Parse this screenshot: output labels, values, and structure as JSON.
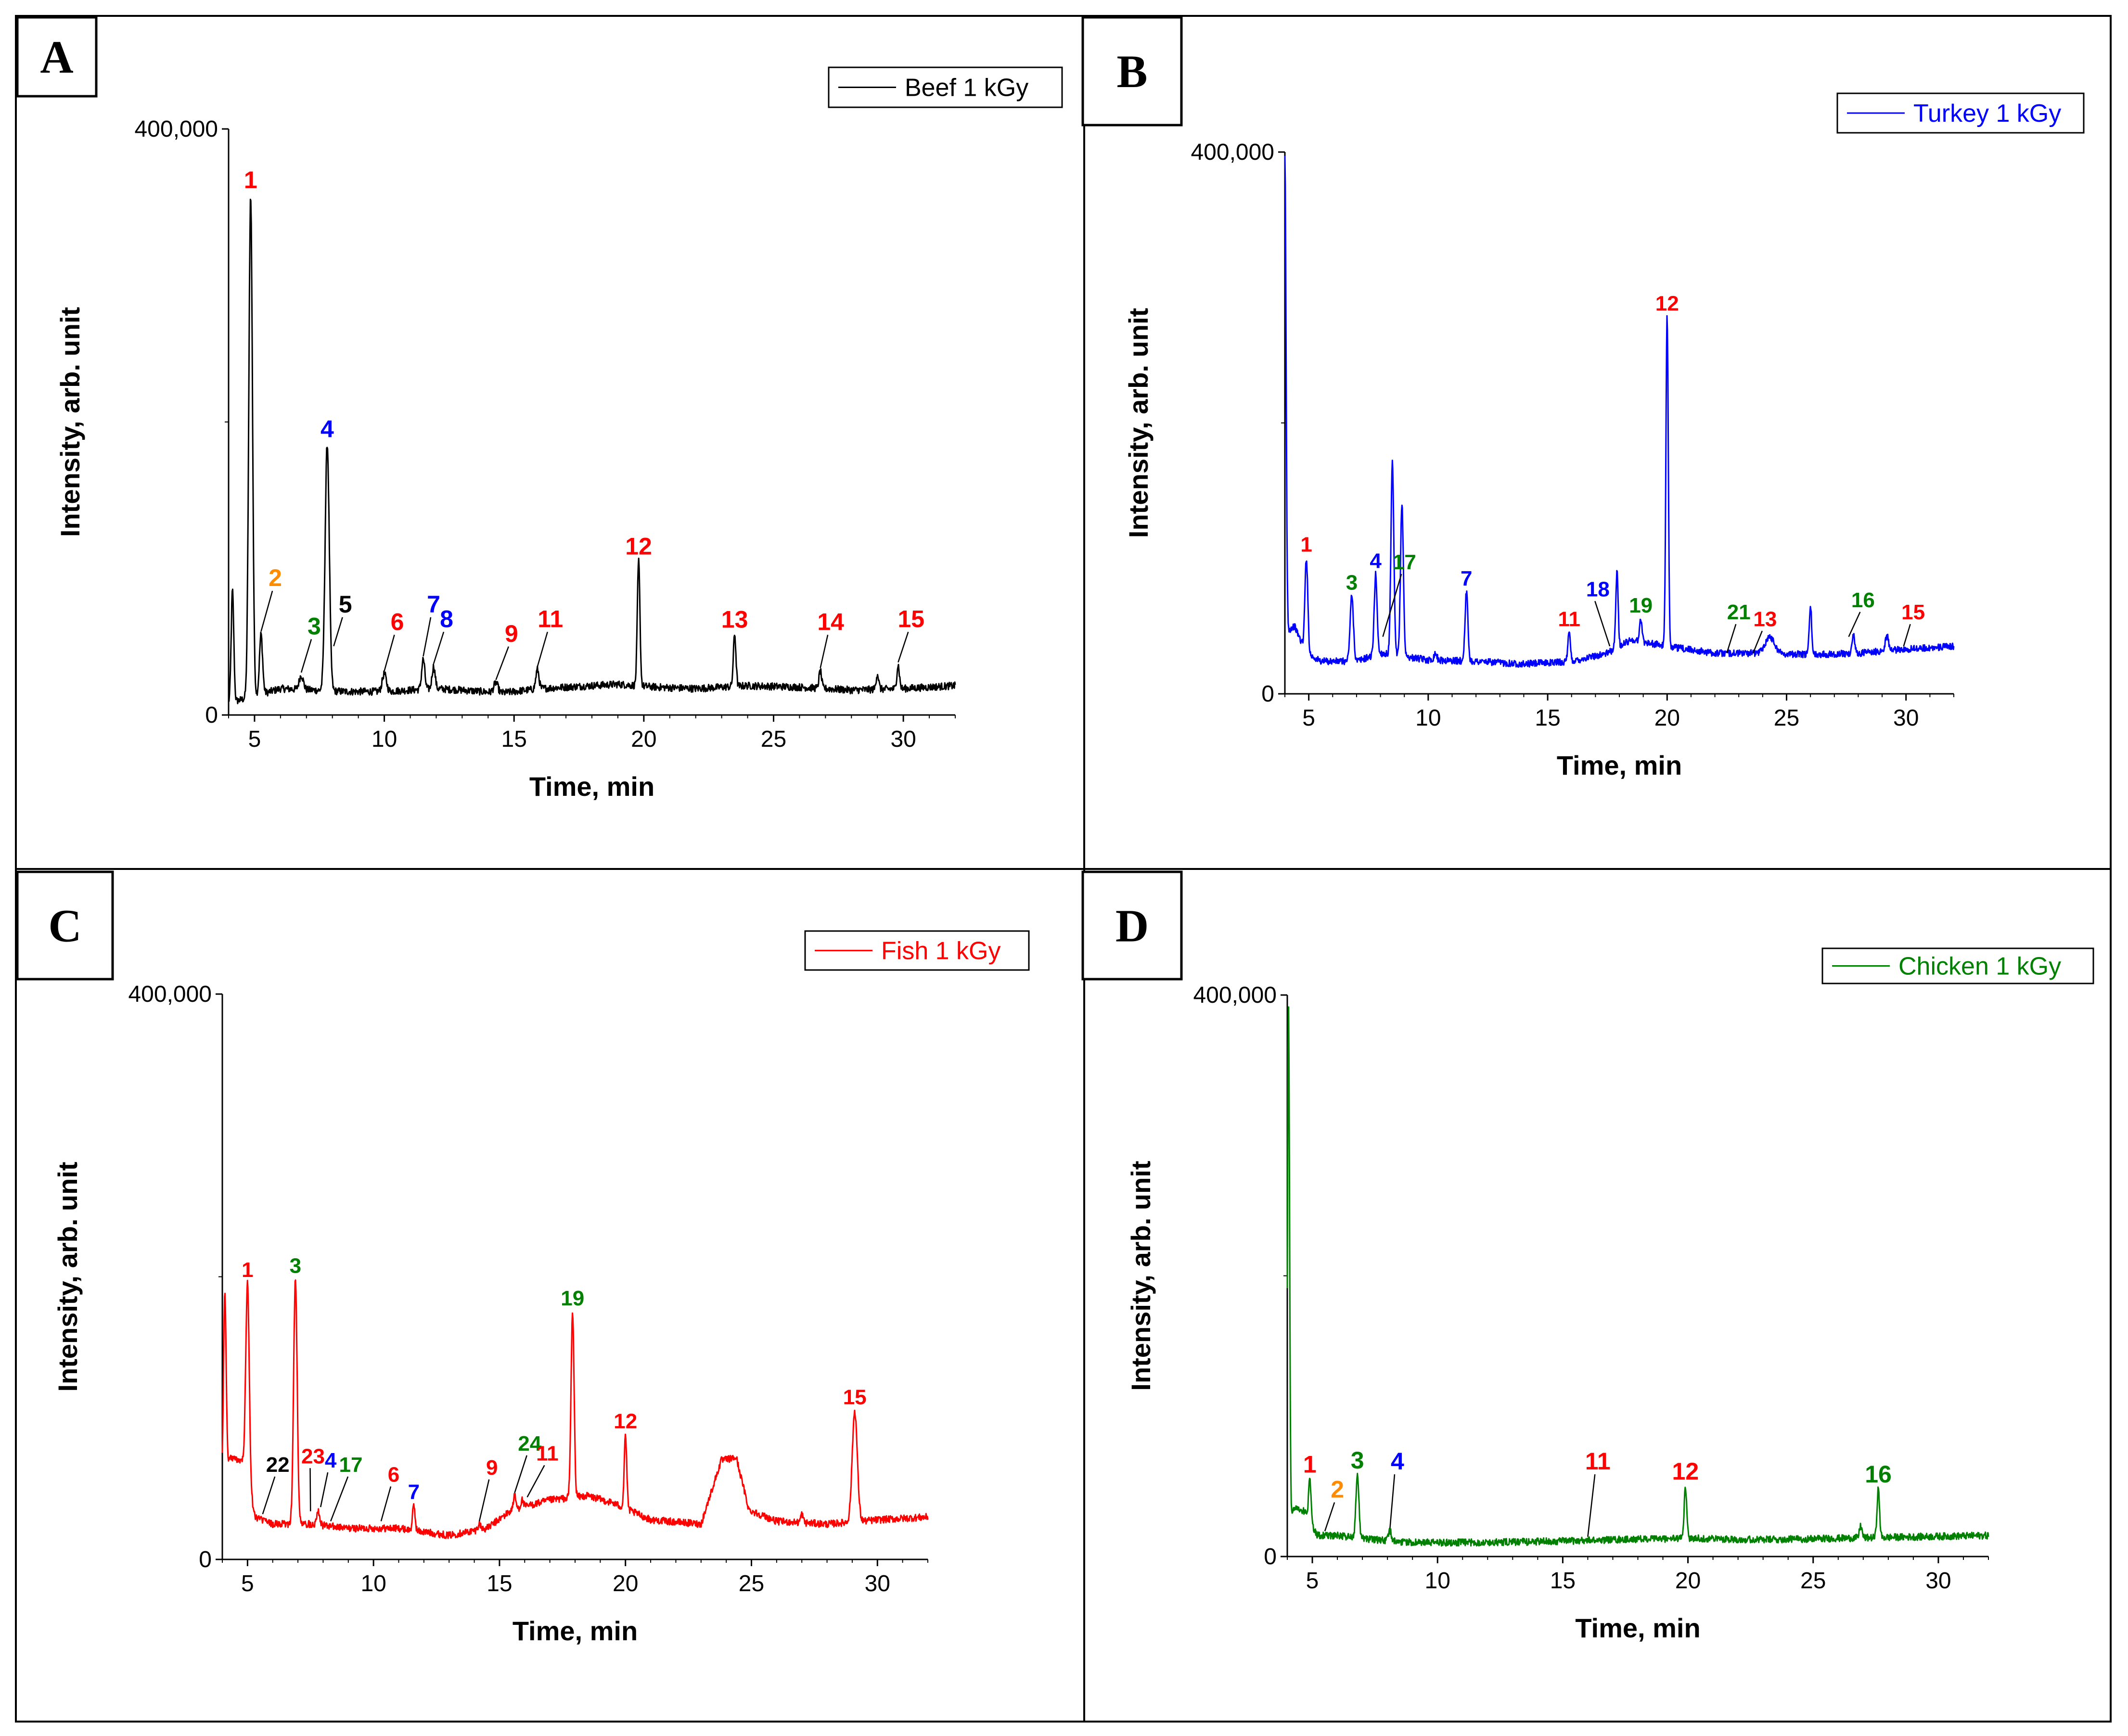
{
  "chart_data": [
    {
      "type": "line",
      "panel": "A",
      "legend": "Beef 1 kGy",
      "color": "#000000",
      "xlabel": "Time, min",
      "ylabel": "Intensity, arb. unit",
      "xlim": [
        4,
        32
      ],
      "ylim": [
        0,
        400000
      ],
      "xticks": [
        5,
        10,
        15,
        20,
        25,
        30
      ],
      "xtick_labels": [
        "5",
        "10",
        "15",
        "20",
        "25",
        "30"
      ],
      "ytick_labels": [
        "0",
        "400,000"
      ],
      "baseline": [
        [
          4.0,
          8000
        ],
        [
          6.0,
          18000
        ],
        [
          8.5,
          16000
        ],
        [
          10.0,
          16000
        ],
        [
          12.0,
          18000
        ],
        [
          13.0,
          17000
        ],
        [
          14.5,
          15000
        ],
        [
          16.0,
          18000
        ],
        [
          18.0,
          20000
        ],
        [
          19.0,
          21000
        ],
        [
          20.5,
          19000
        ],
        [
          22.0,
          18000
        ],
        [
          24.0,
          20000
        ],
        [
          26.0,
          19000
        ],
        [
          28.0,
          17000
        ],
        [
          30.0,
          18000
        ],
        [
          32.0,
          20000
        ]
      ],
      "peaks": [
        {
          "x": 4.15,
          "y": 85000,
          "w": 0.05
        },
        {
          "x": 4.85,
          "y": 355000,
          "w": 0.07
        },
        {
          "x": 5.25,
          "y": 55000,
          "w": 0.06
        },
        {
          "x": 6.8,
          "y": 27000,
          "w": 0.08
        },
        {
          "x": 7.8,
          "y": 185000,
          "w": 0.08
        },
        {
          "x": 10.0,
          "y": 28000,
          "w": 0.08
        },
        {
          "x": 11.5,
          "y": 38000,
          "w": 0.06
        },
        {
          "x": 11.9,
          "y": 33000,
          "w": 0.06
        },
        {
          "x": 14.3,
          "y": 22000,
          "w": 0.08
        },
        {
          "x": 15.9,
          "y": 31000,
          "w": 0.06
        },
        {
          "x": 19.8,
          "y": 105000,
          "w": 0.05
        },
        {
          "x": 23.5,
          "y": 55000,
          "w": 0.05
        },
        {
          "x": 26.8,
          "y": 30000,
          "w": 0.05
        },
        {
          "x": 29.0,
          "y": 28000,
          "w": 0.05
        },
        {
          "x": 29.8,
          "y": 34000,
          "w": 0.05
        }
      ],
      "annotations": [
        {
          "text": "1",
          "color": "#ff0000",
          "peak_x": 4.85,
          "peak_y": 355000
        },
        {
          "text": "2",
          "color": "#ff8c00",
          "peak_x": 5.25,
          "peak_y": 55000,
          "x": 5.8,
          "y": 88000
        },
        {
          "text": "3",
          "color": "#008000",
          "peak_x": 6.8,
          "peak_y": 27000,
          "x": 7.3,
          "y": 55000
        },
        {
          "text": "4",
          "color": "#0000ff",
          "peak_x": 7.8,
          "peak_y": 185000
        },
        {
          "text": "5",
          "color": "#000000",
          "peak_x": 8.05,
          "peak_y": 45000,
          "x": 8.5,
          "y": 70000
        },
        {
          "text": "6",
          "color": "#ff0000",
          "peak_x": 10.0,
          "peak_y": 28000,
          "x": 10.5,
          "y": 58000
        },
        {
          "text": "7",
          "color": "#0000ff",
          "peak_x": 11.5,
          "peak_y": 38000,
          "x": 11.9,
          "y": 70000
        },
        {
          "text": "8",
          "color": "#0000ff",
          "peak_x": 11.9,
          "peak_y": 33000,
          "x": 12.4,
          "y": 60000
        },
        {
          "text": "9",
          "color": "#ff0000",
          "peak_x": 14.3,
          "peak_y": 22000,
          "x": 14.9,
          "y": 50000
        },
        {
          "text": "11",
          "color": "#ff0000",
          "peak_x": 15.9,
          "peak_y": 31000,
          "x": 16.4,
          "y": 60000
        },
        {
          "text": "12",
          "color": "#ff0000",
          "peak_x": 19.8,
          "peak_y": 105000
        },
        {
          "text": "13",
          "color": "#ff0000",
          "peak_x": 23.5,
          "peak_y": 55000
        },
        {
          "text": "14",
          "color": "#ff0000",
          "peak_x": 26.8,
          "peak_y": 30000,
          "x": 27.2,
          "y": 58000
        },
        {
          "text": "15",
          "color": "#ff0000",
          "peak_x": 29.8,
          "peak_y": 34000,
          "x": 30.3,
          "y": 60000
        }
      ]
    },
    {
      "type": "line",
      "panel": "B",
      "legend": "Turkey 1 kGy",
      "color": "#0000ff",
      "xlabel": "Time, min",
      "ylabel": "Intensity, arb. unit",
      "xlim": [
        4,
        32
      ],
      "ylim": [
        0,
        400000
      ],
      "xticks": [
        5,
        10,
        15,
        20,
        25,
        30
      ],
      "xtick_labels": [
        "5",
        "10",
        "15",
        "20",
        "25",
        "30"
      ],
      "ytick_labels": [
        "0",
        "400,000"
      ],
      "baseline": [
        [
          4.0,
          45000
        ],
        [
          4.4,
          50000
        ],
        [
          4.9,
          30000
        ],
        [
          5.5,
          24000
        ],
        [
          7.0,
          24000
        ],
        [
          8.0,
          30000
        ],
        [
          10.0,
          25000
        ],
        [
          12.0,
          24000
        ],
        [
          14.0,
          22000
        ],
        [
          16.0,
          24000
        ],
        [
          17.5,
          30000
        ],
        [
          18.5,
          40000
        ],
        [
          20.0,
          35000
        ],
        [
          22.0,
          30000
        ],
        [
          24.0,
          30000
        ],
        [
          26.0,
          29000
        ],
        [
          28.0,
          30000
        ],
        [
          30.0,
          33000
        ],
        [
          32.0,
          35000
        ]
      ],
      "peaks": [
        {
          "x": 4.0,
          "y": 395000,
          "w": 0.05
        },
        {
          "x": 4.9,
          "y": 100000,
          "w": 0.06
        },
        {
          "x": 6.8,
          "y": 72000,
          "w": 0.07
        },
        {
          "x": 7.8,
          "y": 88000,
          "w": 0.06
        },
        {
          "x": 8.5,
          "y": 170000,
          "w": 0.06
        },
        {
          "x": 8.9,
          "y": 140000,
          "w": 0.06
        },
        {
          "x": 10.3,
          "y": 30000,
          "w": 0.06
        },
        {
          "x": 11.6,
          "y": 75000,
          "w": 0.06
        },
        {
          "x": 15.9,
          "y": 45000,
          "w": 0.05
        },
        {
          "x": 17.9,
          "y": 90000,
          "w": 0.05
        },
        {
          "x": 18.9,
          "y": 55000,
          "w": 0.05
        },
        {
          "x": 20.0,
          "y": 278000,
          "w": 0.05
        },
        {
          "x": 24.3,
          "y": 42000,
          "w": 0.2
        },
        {
          "x": 26.0,
          "y": 65000,
          "w": 0.05
        },
        {
          "x": 27.8,
          "y": 45000,
          "w": 0.05
        },
        {
          "x": 29.2,
          "y": 43000,
          "w": 0.07
        }
      ],
      "annotations": [
        {
          "text": "1",
          "color": "#ff0000",
          "peak_x": 4.9,
          "peak_y": 100000
        },
        {
          "text": "3",
          "color": "#008000",
          "peak_x": 6.8,
          "peak_y": 72000
        },
        {
          "text": "4",
          "color": "#0000ff",
          "peak_x": 7.8,
          "peak_y": 88000
        },
        {
          "text": "17",
          "color": "#008000",
          "peak_x": 8.1,
          "peak_y": 40000,
          "x": 9.0,
          "y": 92000
        },
        {
          "text": "7",
          "color": "#0000ff",
          "peak_x": 11.6,
          "peak_y": 75000
        },
        {
          "text": "11",
          "color": "#ff0000",
          "peak_x": 15.9,
          "peak_y": 45000
        },
        {
          "text": "18",
          "color": "#0000ff",
          "peak_x": 17.6,
          "peak_y": 33000,
          "x": 17.1,
          "y": 72000
        },
        {
          "text": "19",
          "color": "#008000",
          "peak_x": 18.9,
          "peak_y": 55000
        },
        {
          "text": "12",
          "color": "#ff0000",
          "peak_x": 20.0,
          "peak_y": 278000
        },
        {
          "text": "21",
          "color": "#008000",
          "peak_x": 22.5,
          "peak_y": 28000,
          "x": 23.0,
          "y": 55000
        },
        {
          "text": "13",
          "color": "#ff0000",
          "peak_x": 23.6,
          "peak_y": 28000,
          "x": 24.1,
          "y": 50000
        },
        {
          "text": "16",
          "color": "#008000",
          "peak_x": 27.6,
          "peak_y": 40000,
          "x": 28.2,
          "y": 64000
        },
        {
          "text": "15",
          "color": "#ff0000",
          "peak_x": 29.9,
          "peak_y": 33000,
          "x": 30.3,
          "y": 55000
        }
      ]
    },
    {
      "type": "line",
      "panel": "C",
      "legend": "Fish 1 kGy",
      "color": "#ff0000",
      "xlabel": "Time, min",
      "ylabel": "Intensity, arb. unit",
      "xlim": [
        4,
        32
      ],
      "ylim": [
        0,
        400000
      ],
      "xticks": [
        5,
        10,
        15,
        20,
        25,
        30
      ],
      "xtick_labels": [
        "5",
        "10",
        "15",
        "20",
        "25",
        "30"
      ],
      "ytick_labels": [
        "0",
        "400,000"
      ],
      "baseline": [
        [
          4.0,
          60000
        ],
        [
          4.3,
          72000
        ],
        [
          4.8,
          70000
        ],
        [
          5.3,
          30000
        ],
        [
          6.0,
          25000
        ],
        [
          7.5,
          25000
        ],
        [
          9.0,
          22000
        ],
        [
          11.0,
          22000
        ],
        [
          13.0,
          17000
        ],
        [
          14.5,
          22000
        ],
        [
          15.5,
          35000
        ],
        [
          17.0,
          42000
        ],
        [
          18.5,
          45000
        ],
        [
          19.5,
          40000
        ],
        [
          21.0,
          28000
        ],
        [
          23.0,
          25000
        ],
        [
          23.8,
          70000
        ],
        [
          24.4,
          72000
        ],
        [
          24.9,
          35000
        ],
        [
          26.0,
          27000
        ],
        [
          28.0,
          25000
        ],
        [
          30.0,
          28000
        ],
        [
          32.0,
          30000
        ]
      ],
      "peaks": [
        {
          "x": 4.1,
          "y": 190000,
          "w": 0.05
        },
        {
          "x": 5.0,
          "y": 195000,
          "w": 0.07
        },
        {
          "x": 6.9,
          "y": 198000,
          "w": 0.07
        },
        {
          "x": 7.8,
          "y": 35000,
          "w": 0.06
        },
        {
          "x": 11.6,
          "y": 38000,
          "w": 0.05
        },
        {
          "x": 14.2,
          "y": 25000,
          "w": 0.06
        },
        {
          "x": 15.6,
          "y": 45000,
          "w": 0.05
        },
        {
          "x": 15.9,
          "y": 42000,
          "w": 0.05
        },
        {
          "x": 17.9,
          "y": 175000,
          "w": 0.06
        },
        {
          "x": 20.0,
          "y": 88000,
          "w": 0.05
        },
        {
          "x": 27.0,
          "y": 32000,
          "w": 0.05
        },
        {
          "x": 29.1,
          "y": 105000,
          "w": 0.1
        }
      ],
      "annotations": [
        {
          "text": "1",
          "color": "#ff0000",
          "peak_x": 5.0,
          "peak_y": 195000
        },
        {
          "text": "3",
          "color": "#008000",
          "peak_x": 6.9,
          "peak_y": 198000
        },
        {
          "text": "22",
          "color": "#000000",
          "peak_x": 5.6,
          "peak_y": 30000,
          "x": 6.2,
          "y": 62000
        },
        {
          "text": "23",
          "color": "#ff0000",
          "peak_x": 7.5,
          "peak_y": 32000,
          "x": 7.6,
          "y": 68000
        },
        {
          "text": "4",
          "color": "#0000ff",
          "peak_x": 7.9,
          "peak_y": 35000,
          "x": 8.3,
          "y": 65000
        },
        {
          "text": "17",
          "color": "#008000",
          "peak_x": 8.3,
          "peak_y": 25000,
          "x": 9.1,
          "y": 62000
        },
        {
          "text": "6",
          "color": "#ff0000",
          "peak_x": 10.3,
          "peak_y": 25000,
          "x": 10.8,
          "y": 55000
        },
        {
          "text": "7",
          "color": "#0000ff",
          "peak_x": 11.6,
          "peak_y": 38000
        },
        {
          "text": "9",
          "color": "#ff0000",
          "peak_x": 14.2,
          "peak_y": 25000,
          "x": 14.7,
          "y": 60000
        },
        {
          "text": "24",
          "color": "#008000",
          "peak_x": 15.6,
          "peak_y": 45000,
          "x": 16.2,
          "y": 77000
        },
        {
          "text": "11",
          "color": "#ff0000",
          "peak_x": 16.1,
          "peak_y": 42000,
          "x": 16.9,
          "y": 70000
        },
        {
          "text": "19",
          "color": "#008000",
          "peak_x": 17.9,
          "peak_y": 175000
        },
        {
          "text": "12",
          "color": "#ff0000",
          "peak_x": 20.0,
          "peak_y": 88000
        },
        {
          "text": "15",
          "color": "#ff0000",
          "peak_x": 29.1,
          "peak_y": 105000
        }
      ]
    },
    {
      "type": "line",
      "panel": "D",
      "legend": "Chicken 1 kGy",
      "color": "#008000",
      "xlabel": "Time, min",
      "ylabel": "Intensity, arb. unit",
      "xlim": [
        4,
        32
      ],
      "ylim": [
        0,
        400000
      ],
      "xticks": [
        5,
        10,
        15,
        20,
        25,
        30
      ],
      "xtick_labels": [
        "5",
        "10",
        "15",
        "20",
        "25",
        "30"
      ],
      "ytick_labels": [
        "0",
        "400,000"
      ],
      "baseline": [
        [
          4.0,
          25000
        ],
        [
          4.3,
          35000
        ],
        [
          4.7,
          32000
        ],
        [
          5.2,
          15000
        ],
        [
          6.0,
          15000
        ],
        [
          7.5,
          12000
        ],
        [
          9.0,
          10000
        ],
        [
          12.0,
          10000
        ],
        [
          15.0,
          11000
        ],
        [
          17.0,
          12000
        ],
        [
          20.0,
          13000
        ],
        [
          23.0,
          12000
        ],
        [
          26.0,
          13000
        ],
        [
          29.0,
          14000
        ],
        [
          32.0,
          15000
        ]
      ],
      "peaks": [
        {
          "x": 4.05,
          "y": 390000,
          "w": 0.04
        },
        {
          "x": 4.9,
          "y": 55000,
          "w": 0.05
        },
        {
          "x": 6.8,
          "y": 58000,
          "w": 0.06
        },
        {
          "x": 8.1,
          "y": 18000,
          "w": 0.06
        },
        {
          "x": 19.9,
          "y": 50000,
          "w": 0.05
        },
        {
          "x": 26.9,
          "y": 22000,
          "w": 0.05
        },
        {
          "x": 27.6,
          "y": 48000,
          "w": 0.05
        }
      ],
      "annotations": [
        {
          "text": "1",
          "color": "#ff0000",
          "peak_x": 4.9,
          "peak_y": 55000
        },
        {
          "text": "2",
          "color": "#ff8c00",
          "peak_x": 5.5,
          "peak_y": 16000,
          "x": 6.0,
          "y": 42000
        },
        {
          "text": "3",
          "color": "#008000",
          "peak_x": 6.8,
          "peak_y": 58000
        },
        {
          "text": "4",
          "color": "#0000ff",
          "peak_x": 8.1,
          "peak_y": 18000,
          "x": 8.4,
          "y": 62000
        },
        {
          "text": "11",
          "color": "#ff0000",
          "peak_x": 16.0,
          "peak_y": 12000,
          "x": 16.4,
          "y": 62000
        },
        {
          "text": "12",
          "color": "#ff0000",
          "peak_x": 19.9,
          "peak_y": 50000
        },
        {
          "text": "16",
          "color": "#008000",
          "peak_x": 27.6,
          "peak_y": 48000
        }
      ]
    }
  ]
}
